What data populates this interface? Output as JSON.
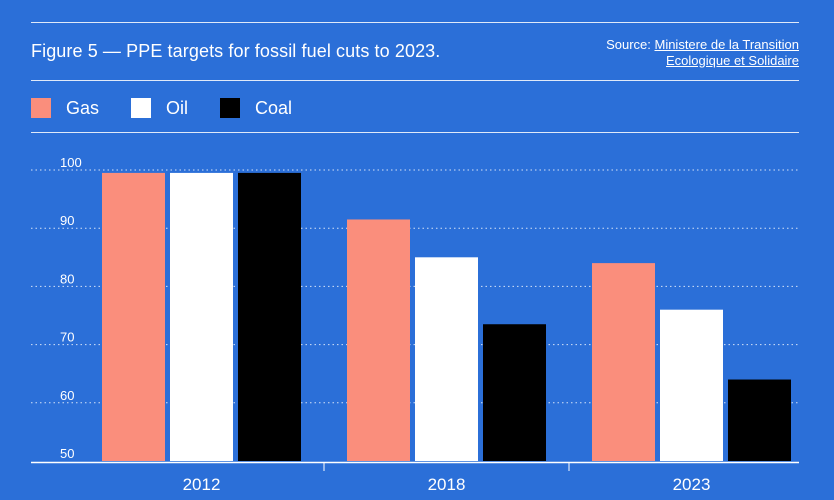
{
  "header": {
    "title": "Figure 5 — PPE targets for fossil fuel cuts to 2023.",
    "source_prefix": "Source: ",
    "source_line1": "Ministere de la Transition",
    "source_line2": "Ecologique et Solidaire"
  },
  "colors": {
    "background": "#2b6fd8",
    "gas": "#fa8e7c",
    "oil": "#ffffff",
    "coal": "#000000"
  },
  "chart_data": {
    "type": "bar",
    "title": "Figure 5 — PPE targets for fossil fuel cuts to 2023.",
    "xlabel": "",
    "ylabel": "",
    "categories": [
      "2012",
      "2018",
      "2023"
    ],
    "series": [
      {
        "name": "Gas",
        "color": "#fa8e7c",
        "values": [
          99.5,
          91.5,
          84
        ]
      },
      {
        "name": "Oil",
        "color": "#ffffff",
        "values": [
          99.5,
          85,
          76
        ]
      },
      {
        "name": "Coal",
        "color": "#000000",
        "values": [
          99.5,
          73.5,
          64
        ]
      }
    ],
    "ylim": [
      50,
      100
    ],
    "yticks": [
      "50",
      "60",
      "70",
      "80",
      "90",
      "100"
    ],
    "grid": true,
    "legend": "top-left"
  }
}
